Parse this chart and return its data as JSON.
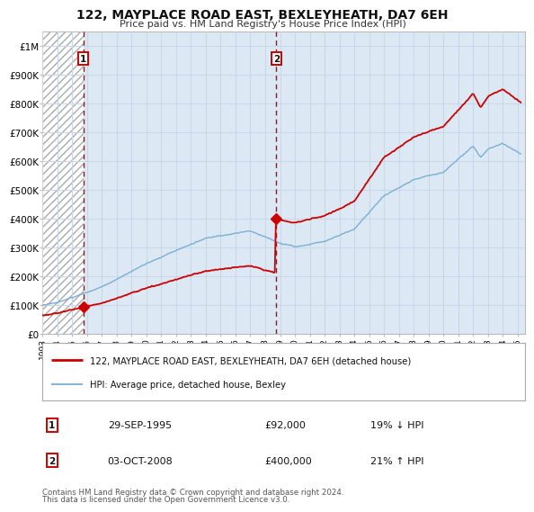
{
  "title": "122, MAYPLACE ROAD EAST, BEXLEYHEATH, DA7 6EH",
  "subtitle": "Price paid vs. HM Land Registry's House Price Index (HPI)",
  "bg_color": "#dce9f5",
  "hatch_bg": "#ffffff",
  "hatch_color": "#aaaaaa",
  "grid_color": "#c8d8e8",
  "red_color": "#cc0000",
  "blue_color": "#7aafd4",
  "ylim_max": 1050000,
  "xlim_start": 1993.0,
  "xlim_end": 2025.5,
  "yticks": [
    0,
    100000,
    200000,
    300000,
    400000,
    500000,
    600000,
    700000,
    800000,
    900000,
    1000000
  ],
  "ytick_labels": [
    "£0",
    "£100K",
    "£200K",
    "£300K",
    "£400K",
    "£500K",
    "£600K",
    "£700K",
    "£800K",
    "£900K",
    "£1M"
  ],
  "xtick_years": [
    1993,
    1994,
    1995,
    1996,
    1997,
    1998,
    1999,
    2000,
    2001,
    2002,
    2003,
    2004,
    2005,
    2006,
    2007,
    2008,
    2009,
    2010,
    2011,
    2012,
    2013,
    2014,
    2015,
    2016,
    2017,
    2018,
    2019,
    2020,
    2021,
    2022,
    2023,
    2024,
    2025
  ],
  "sale1_date": 1995.747,
  "sale1_price": 92000,
  "sale2_date": 2008.754,
  "sale2_price": 400000,
  "legend_line1": "122, MAYPLACE ROAD EAST, BEXLEYHEATH, DA7 6EH (detached house)",
  "legend_line2": "HPI: Average price, detached house, Bexley",
  "annot1_date": "29-SEP-1995",
  "annot1_price": "£92,000",
  "annot1_hpi": "19% ↓ HPI",
  "annot2_date": "03-OCT-2008",
  "annot2_price": "£400,000",
  "annot2_hpi": "21% ↑ HPI",
  "footer1": "Contains HM Land Registry data © Crown copyright and database right 2024.",
  "footer2": "This data is licensed under the Open Government Licence v3.0."
}
